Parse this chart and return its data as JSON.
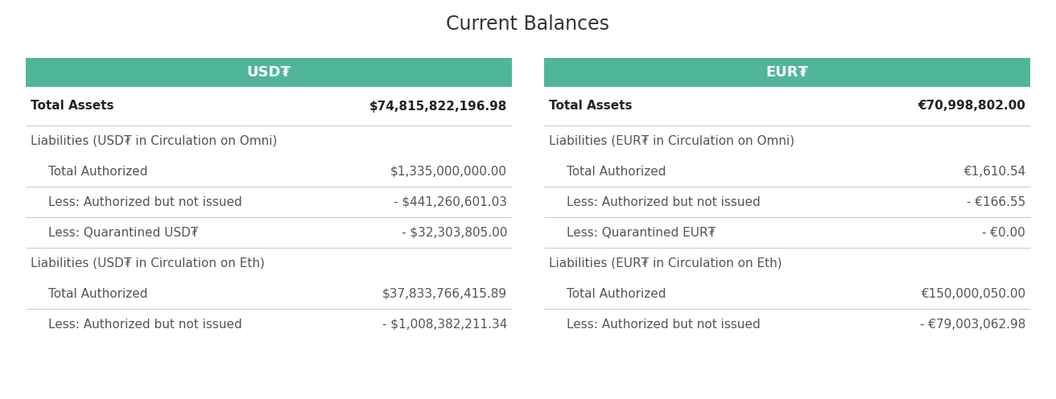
{
  "title": "Current Balances",
  "title_fontsize": 17,
  "title_color": "#333333",
  "background_color": "#ffffff",
  "header_bg_color": "#50b69a",
  "header_text_color": "#ffffff",
  "header_fontsize": 13,
  "divider_color": "#cccccc",
  "text_color": "#555555",
  "bold_color": "#222222",
  "fig_width": 13.12,
  "fig_height": 4.96,
  "dpi": 100,
  "left_panel": {
    "header": "USD₮",
    "rows": [
      {
        "label": "Total Assets",
        "value": "$74,815,822,196.98",
        "bold": true,
        "indent": 0,
        "divider_above": false
      },
      {
        "label": "Liabilities (USD₮ in Circulation on Omni)",
        "value": "",
        "bold": false,
        "indent": 0,
        "divider_above": true
      },
      {
        "label": "Total Authorized",
        "value": "$1,335,000,000.00",
        "bold": false,
        "indent": 1,
        "divider_above": false
      },
      {
        "label": "Less: Authorized but not issued",
        "value": "- $441,260,601.03",
        "bold": false,
        "indent": 1,
        "divider_above": true
      },
      {
        "label": "Less: Quarantined USD₮",
        "value": "- $32,303,805.00",
        "bold": false,
        "indent": 1,
        "divider_above": true
      },
      {
        "label": "Liabilities (USD₮ in Circulation on Eth)",
        "value": "",
        "bold": false,
        "indent": 0,
        "divider_above": true
      },
      {
        "label": "Total Authorized",
        "value": "$37,833,766,415.89",
        "bold": false,
        "indent": 1,
        "divider_above": false
      },
      {
        "label": "Less: Authorized but not issued",
        "value": "- $1,008,382,211.34",
        "bold": false,
        "indent": 1,
        "divider_above": true
      }
    ]
  },
  "right_panel": {
    "header": "EUR₮",
    "rows": [
      {
        "label": "Total Assets",
        "value": "€70,998,802.00",
        "bold": true,
        "indent": 0,
        "divider_above": false
      },
      {
        "label": "Liabilities (EUR₮ in Circulation on Omni)",
        "value": "",
        "bold": false,
        "indent": 0,
        "divider_above": true
      },
      {
        "label": "Total Authorized",
        "value": "€1,610.54",
        "bold": false,
        "indent": 1,
        "divider_above": false
      },
      {
        "label": "Less: Authorized but not issued",
        "value": "- €166.55",
        "bold": false,
        "indent": 1,
        "divider_above": true
      },
      {
        "label": "Less: Quarantined EUR₮",
        "value": "- €0.00",
        "bold": false,
        "indent": 1,
        "divider_above": true
      },
      {
        "label": "Liabilities (EUR₮ in Circulation on Eth)",
        "value": "",
        "bold": false,
        "indent": 0,
        "divider_above": true
      },
      {
        "label": "Total Authorized",
        "value": "€150,000,050.00",
        "bold": false,
        "indent": 1,
        "divider_above": false
      },
      {
        "label": "Less: Authorized but not issued",
        "value": "- €79,003,062.98",
        "bold": false,
        "indent": 1,
        "divider_above": true
      }
    ]
  }
}
